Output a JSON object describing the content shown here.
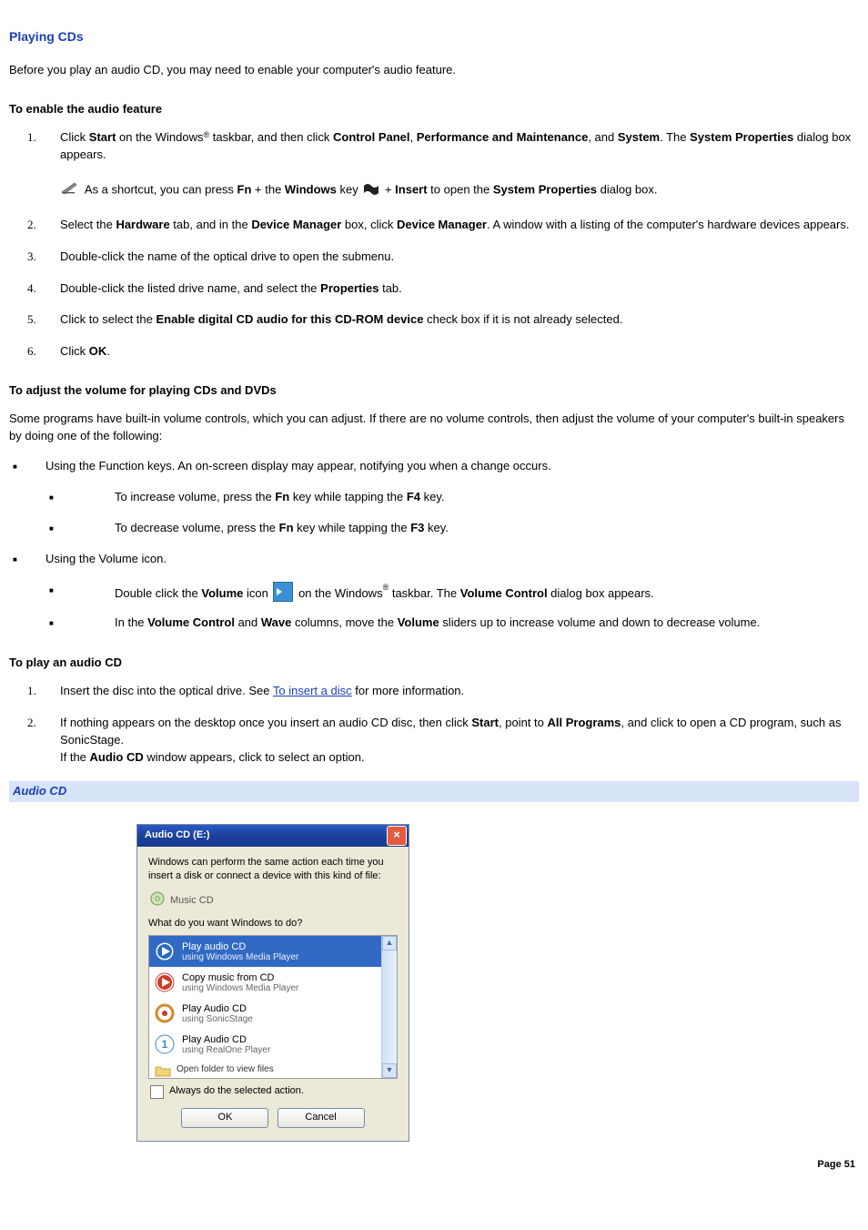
{
  "title": "Playing CDs",
  "intro": "Before you play an audio CD, you may need to enable your computer's audio feature.",
  "enable": {
    "heading": "To enable the audio feature",
    "steps": {
      "s1a": "Click ",
      "s1_start": "Start",
      "s1b": " on the Windows",
      "s1_reg": "®",
      "s1c": " taskbar, and then click ",
      "s1_cp": "Control Panel",
      "s1d": ", ",
      "s1_pm": "Performance and Maintenance",
      "s1e": ", and ",
      "s1_sys": "System",
      "s1f": ". The ",
      "s1_sp": "System Properties",
      "s1g": " dialog box appears.",
      "note_a": " As a shortcut, you can press ",
      "note_fn": "Fn",
      "note_b": " + the ",
      "note_win": "Windows",
      "note_c": " key ",
      "note_d": " + ",
      "note_ins": "Insert",
      "note_e": " to open the ",
      "note_sp": "System Properties",
      "note_f": " dialog box.",
      "s2a": "Select the ",
      "s2_hw": "Hardware",
      "s2b": " tab, and in the ",
      "s2_dm1": "Device Manager",
      "s2c": " box, click ",
      "s2_dm2": "Device Manager",
      "s2d": ". A window with a listing of the computer's hardware devices appears.",
      "s3": "Double-click the name of the optical drive to open the submenu.",
      "s4a": "Double-click the listed drive name, and select the ",
      "s4_prop": "Properties",
      "s4b": " tab.",
      "s5a": "Click to select the ",
      "s5_chk": "Enable digital CD audio for this CD-ROM device",
      "s5b": " check box if it is not already selected.",
      "s6a": "Click ",
      "s6_ok": "OK",
      "s6b": "."
    }
  },
  "volume": {
    "heading": "To adjust the volume for playing CDs and DVDs",
    "intro": "Some programs have built-in volume controls, which you can adjust. If there are no volume controls, then adjust the volume of your computer's built-in speakers by doing one of the following:",
    "fn_intro": "Using the Function keys. An on-screen display may appear, notifying you when a change occurs.",
    "inc_a": "To increase volume, press the ",
    "fn": "Fn",
    "inc_b": " key while tapping the ",
    "f4": "F4",
    "inc_c": " key.",
    "dec_a": "To decrease volume, press the ",
    "dec_b": " key while tapping the ",
    "f3": "F3",
    "dec_c": " key.",
    "volicon_intro": "Using the Volume icon.",
    "dbl_a": "Double click the ",
    "dbl_vol": "Volume",
    "dbl_b": " icon ",
    "dbl_c": " on the Windows",
    "dbl_reg": "®",
    "dbl_d": " taskbar. The ",
    "dbl_vc": "Volume Control",
    "dbl_e": " dialog box appears.",
    "sld_a": "In the ",
    "sld_vc": "Volume Control",
    "sld_b": " and ",
    "sld_wave": "Wave",
    "sld_c": " columns, move the ",
    "sld_vol": "Volume",
    "sld_d": " sliders up to increase volume and down to decrease volume."
  },
  "play": {
    "heading": "To play an audio CD",
    "s1a": "Insert the disc into the optical drive. See ",
    "s1_link": "To insert a disc",
    "s1b": " for more information.",
    "s2a": "If nothing appears on the desktop once you insert an audio CD disc, then click ",
    "s2_start": "Start",
    "s2b": ", point to ",
    "s2_ap": "All Programs",
    "s2c": ", and click to open a CD program, such as SonicStage.",
    "s2d": "If the ",
    "s2_acd": "Audio CD",
    "s2e": " window appears, click to select an option."
  },
  "caption": "Audio CD",
  "dialog": {
    "title": "Audio CD (E:)",
    "intro": "Windows can perform the same action each time you insert a disk or connect a device with this kind of file:",
    "file_type": "Music CD",
    "prompt": "What do you want Windows to do?",
    "options": [
      {
        "l1": "Play audio CD",
        "l2": "using Windows Media Player",
        "icon": "wmp-play",
        "selected": true
      },
      {
        "l1": "Copy music from CD",
        "l2": "using Windows Media Player",
        "icon": "wmp-copy",
        "selected": false
      },
      {
        "l1": "Play Audio CD",
        "l2": "using SonicStage",
        "icon": "sonicstage",
        "selected": false
      },
      {
        "l1": "Play Audio CD",
        "l2": "using RealOne Player",
        "icon": "realone",
        "selected": false
      }
    ],
    "folder_row": "Open folder to view files",
    "always": "Always do the selected action.",
    "ok": "OK",
    "cancel": "Cancel"
  },
  "page_footer": "Page 51",
  "colors": {
    "heading_blue": "#1a3fb8",
    "caption_bg": "#d7e4f8",
    "xp_title_top": "#2a5cc7",
    "xp_title_bottom": "#1a3a92",
    "dialog_bg": "#ece9d8",
    "selection_bg": "#316ac5",
    "close_bg": "#e35b3f"
  }
}
